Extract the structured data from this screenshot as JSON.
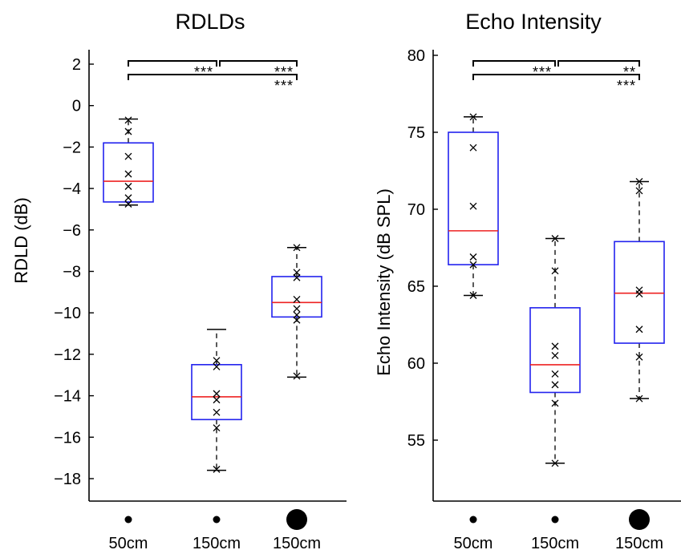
{
  "chart_data": [
    {
      "type": "boxplot",
      "title": "RDLDs",
      "ylabel": "RDLD (dB)",
      "xlabel": "",
      "ylim": [
        -19,
        2.5
      ],
      "yticks": [
        2,
        0,
        -2,
        -4,
        -6,
        -8,
        -10,
        -12,
        -14,
        -16,
        -18
      ],
      "ytick_labels": [
        "2",
        "0",
        "−2",
        "−4",
        "−6",
        "−8",
        "−10",
        "−12",
        "−14",
        "−16",
        "−18"
      ],
      "grid": false,
      "categories": [
        "50cm",
        "150cm",
        "150cm"
      ],
      "category_marker_size": [
        "small",
        "small",
        "large"
      ],
      "boxes": [
        {
          "whisker_low": -4.8,
          "q1": -4.65,
          "median": -3.65,
          "q3": -1.8,
          "whisker_high": -0.65,
          "points": [
            -0.7,
            -1.25,
            -2.45,
            -3.3,
            -3.9,
            -4.45,
            -4.75
          ]
        },
        {
          "whisker_low": -17.6,
          "q1": -15.15,
          "median": -14.05,
          "q3": -12.5,
          "whisker_high": -10.8,
          "points": [
            -12.3,
            -12.6,
            -13.9,
            -14.2,
            -14.8,
            -15.55,
            -17.55
          ]
        },
        {
          "whisker_low": -13.1,
          "q1": -10.2,
          "median": -9.5,
          "q3": -8.25,
          "whisker_high": -6.85,
          "points": [
            -6.85,
            -8.05,
            -8.3,
            -9.35,
            -9.8,
            -10.1,
            -10.35,
            -13.05
          ]
        }
      ],
      "significance": [
        {
          "pair": [
            1,
            2
          ],
          "label": "***",
          "level": 1
        },
        {
          "pair": [
            2,
            3
          ],
          "label": "***",
          "level": 1
        },
        {
          "pair": [
            1,
            3
          ],
          "label": "***",
          "level": 2
        }
      ]
    },
    {
      "type": "boxplot",
      "title": "Echo Intensity",
      "ylabel": "Echo Intensity (dB SPL)",
      "xlabel": "",
      "ylim": [
        52,
        80
      ],
      "yticks": [
        80,
        75,
        70,
        65,
        60,
        55
      ],
      "ytick_labels": [
        "80",
        "75",
        "70",
        "65",
        "60",
        "55"
      ],
      "grid": false,
      "categories": [
        "50cm",
        "150cm",
        "150cm"
      ],
      "category_marker_size": [
        "small",
        "small",
        "large"
      ],
      "boxes": [
        {
          "whisker_low": 64.4,
          "q1": 66.4,
          "median": 68.6,
          "q3": 75.0,
          "whisker_high": 76.0,
          "points": [
            76.0,
            74.0,
            70.2,
            66.9,
            66.4,
            64.4
          ]
        },
        {
          "whisker_low": 53.5,
          "q1": 58.1,
          "median": 59.9,
          "q3": 63.6,
          "whisker_high": 68.1,
          "points": [
            68.1,
            66.0,
            61.1,
            60.5,
            59.3,
            58.6,
            57.4,
            53.5
          ]
        },
        {
          "whisker_low": 57.7,
          "q1": 61.3,
          "median": 64.55,
          "q3": 67.9,
          "whisker_high": 71.8,
          "points": [
            71.8,
            71.2,
            64.75,
            64.5,
            62.2,
            60.4,
            57.7
          ]
        }
      ],
      "significance": [
        {
          "pair": [
            1,
            2
          ],
          "label": "***",
          "level": 1
        },
        {
          "pair": [
            2,
            3
          ],
          "label": "**",
          "level": 1
        },
        {
          "pair": [
            1,
            3
          ],
          "label": "***",
          "level": 2
        }
      ]
    }
  ],
  "colors": {
    "box": "#2222ee",
    "median": "#ee2222",
    "axis": "#000000",
    "points": "#000000"
  }
}
